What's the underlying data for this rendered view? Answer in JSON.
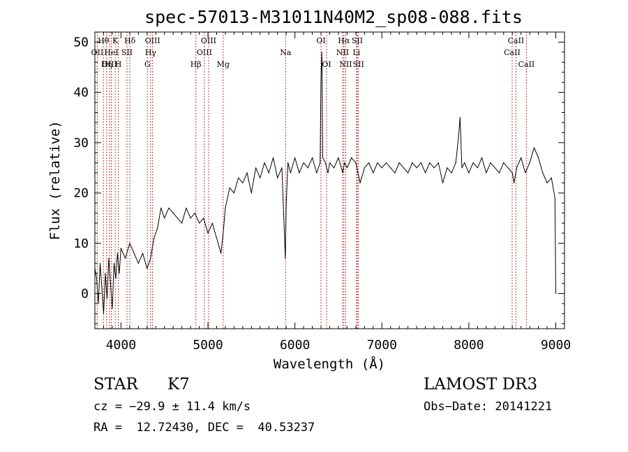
{
  "chart_data": {
    "type": "line",
    "title": "spec-57013-M31011N40M2_sp08-088.fits",
    "xlabel": "Wavelength (Å)",
    "ylabel": "Flux (relative)",
    "xlim": [
      3700,
      9100
    ],
    "ylim": [
      -7,
      52
    ],
    "x_ticks": [
      4000,
      5000,
      6000,
      7000,
      8000,
      9000
    ],
    "y_ticks": [
      0,
      10,
      20,
      30,
      40,
      50
    ],
    "grid": false,
    "series": [
      {
        "name": "flux",
        "x": [
          3700,
          3720,
          3740,
          3760,
          3780,
          3800,
          3820,
          3840,
          3860,
          3880,
          3900,
          3920,
          3940,
          3960,
          3980,
          4000,
          4050,
          4100,
          4150,
          4200,
          4250,
          4300,
          4340,
          4380,
          4420,
          4460,
          4500,
          4550,
          4600,
          4650,
          4700,
          4750,
          4800,
          4850,
          4900,
          4950,
          5000,
          5050,
          5100,
          5150,
          5180,
          5200,
          5250,
          5300,
          5350,
          5400,
          5450,
          5500,
          5550,
          5600,
          5650,
          5700,
          5750,
          5800,
          5850,
          5890,
          5900,
          5920,
          5950,
          6000,
          6050,
          6100,
          6150,
          6200,
          6250,
          6290,
          6300,
          6310,
          6320,
          6350,
          6380,
          6400,
          6450,
          6500,
          6550,
          6570,
          6600,
          6650,
          6700,
          6750,
          6800,
          6850,
          6900,
          6950,
          7000,
          7050,
          7100,
          7150,
          7200,
          7250,
          7300,
          7350,
          7400,
          7450,
          7500,
          7550,
          7600,
          7650,
          7700,
          7750,
          7800,
          7850,
          7880,
          7900,
          7920,
          7950,
          8000,
          8050,
          8100,
          8150,
          8200,
          8250,
          8300,
          8350,
          8400,
          8450,
          8500,
          8520,
          8550,
          8600,
          8650,
          8700,
          8750,
          8800,
          8850,
          8900,
          8950,
          8990,
          9000
        ],
        "values": [
          5,
          3,
          -2,
          6,
          1,
          -4,
          4,
          -1,
          7,
          2,
          -3,
          6,
          3,
          8,
          4,
          9,
          7,
          10,
          8,
          6,
          8,
          5,
          7,
          11,
          13,
          17,
          15,
          17,
          16,
          15,
          14,
          17,
          15,
          16,
          14,
          15,
          12,
          14,
          11,
          8,
          13,
          17,
          21,
          20,
          23,
          22,
          24,
          20,
          25,
          23,
          26,
          24,
          27,
          23,
          25,
          7,
          18,
          26,
          24,
          27,
          24,
          26,
          25,
          27,
          24,
          26,
          43,
          48,
          27,
          26,
          24,
          26,
          25,
          27,
          24,
          26,
          25,
          27,
          26,
          22,
          25,
          26,
          24,
          26,
          25,
          26,
          25,
          24,
          26,
          25,
          24,
          26,
          25,
          26,
          24,
          26,
          25,
          26,
          22,
          25,
          24,
          26,
          31,
          35,
          25,
          26,
          24,
          26,
          25,
          27,
          24,
          26,
          25,
          24,
          26,
          25,
          24,
          22,
          25,
          27,
          24,
          26,
          29,
          27,
          24,
          22,
          23,
          19,
          0
        ]
      }
    ],
    "lines": [
      {
        "label": "Hθ",
        "wave": 3798,
        "row": 1
      },
      {
        "label": "OII",
        "wave": 3727,
        "row": 2
      },
      {
        "label": "OIII",
        "wave": 3869,
        "row": 3
      },
      {
        "label": "K",
        "wave": 3934,
        "row": 1
      },
      {
        "label": "HeI",
        "wave": 3889,
        "row": 2
      },
      {
        "label": "Hη",
        "wave": 3835,
        "row": 3
      },
      {
        "label": "SII",
        "wave": 4069,
        "row": 2
      },
      {
        "label": "H",
        "wave": 3969,
        "row": 3
      },
      {
        "label": "Hδ",
        "wave": 4102,
        "row": 1
      },
      {
        "label": "OIII",
        "wave": 4363,
        "row": 1
      },
      {
        "label": "Hγ",
        "wave": 4341,
        "row": 2
      },
      {
        "label": "G",
        "wave": 4304,
        "row": 3
      },
      {
        "label": "OIII",
        "wave": 5007,
        "row": 1
      },
      {
        "label": "OIII",
        "wave": 4959,
        "row": 2
      },
      {
        "label": "Hβ",
        "wave": 4861,
        "row": 3
      },
      {
        "label": "Mg",
        "wave": 5175,
        "row": 3
      },
      {
        "label": "Na",
        "wave": 5893,
        "row": 2
      },
      {
        "label": "OI",
        "wave": 6300,
        "row": 1
      },
      {
        "label": "OI",
        "wave": 6364,
        "row": 3
      },
      {
        "label": "Hα",
        "wave": 6563,
        "row": 1
      },
      {
        "label": "NII",
        "wave": 6548,
        "row": 2
      },
      {
        "label": "NII",
        "wave": 6584,
        "row": 3
      },
      {
        "label": "SII",
        "wave": 6717,
        "row": 1
      },
      {
        "label": "Li",
        "wave": 6708,
        "row": 2
      },
      {
        "label": "SII",
        "wave": 6731,
        "row": 3
      },
      {
        "label": "CaII",
        "wave": 8542,
        "row": 1
      },
      {
        "label": "CaII",
        "wave": 8498,
        "row": 2
      },
      {
        "label": "CaII",
        "wave": 8662,
        "row": 3
      }
    ]
  },
  "footer": {
    "object_type": "STAR",
    "subclass": "K7",
    "survey": "LAMOST DR3",
    "cz": "cz = −29.9 ± 11.4 km/s",
    "obs_date": "Obs−Date: 20141221",
    "coords": "RA =  12.72430, DEC =  40.53237"
  }
}
